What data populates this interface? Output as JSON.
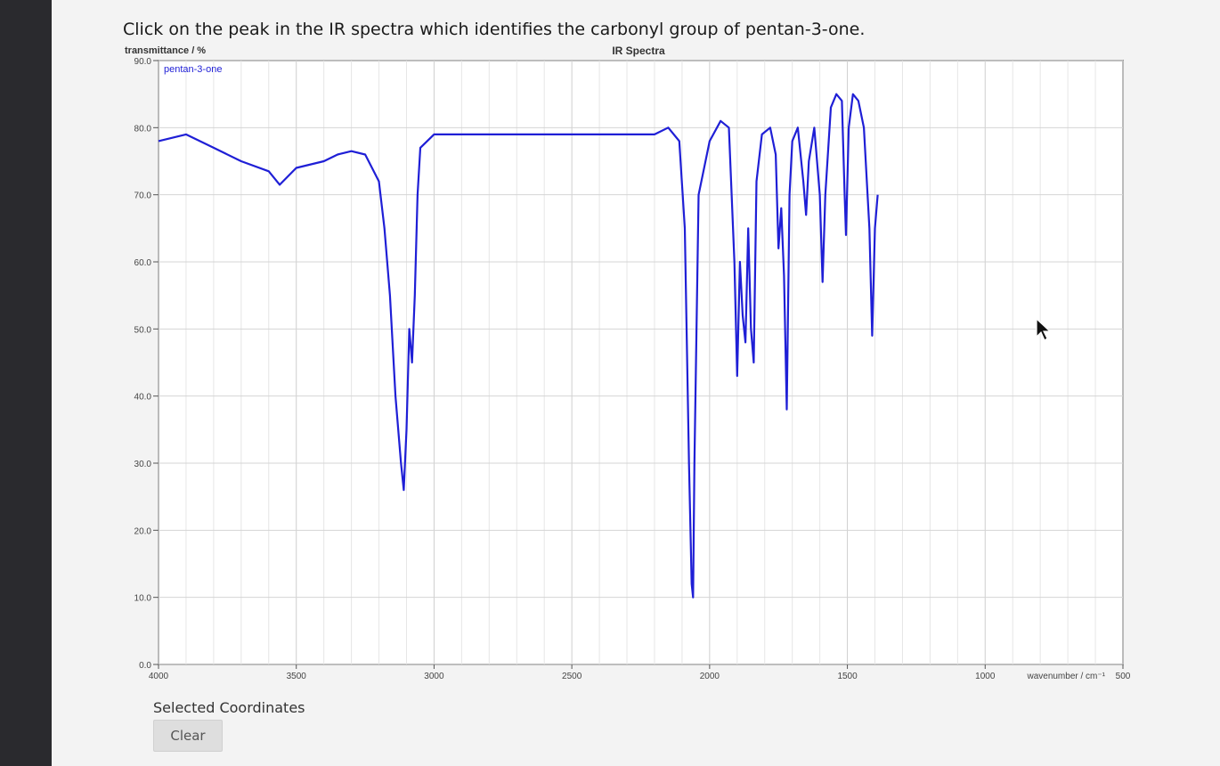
{
  "question": "Click on the peak in the IR spectra which identifies the carbonyl group of pentan-3-one.",
  "coordinates_label": "Selected Coordinates",
  "clear_label": "Clear",
  "chart_data": {
    "type": "line",
    "title": "IR Spectra",
    "ylabel": "transmittance / %",
    "xlabel": "wavenumber / cm⁻¹",
    "xlim": [
      4000,
      500
    ],
    "ylim": [
      0,
      90
    ],
    "x_ticks": [
      4000,
      3500,
      3000,
      2500,
      2000,
      1500,
      1000,
      500
    ],
    "y_ticks": [
      "0.0",
      "10.0",
      "20.0",
      "30.0",
      "40.0",
      "50.0",
      "60.0",
      "70.0",
      "80.0",
      "90.0"
    ],
    "grid": true,
    "legend_position": "top-left",
    "series": [
      {
        "name": "pentan-3-one",
        "color": "#1f1fd6",
        "points": [
          [
            4000,
            78
          ],
          [
            3900,
            79
          ],
          [
            3800,
            77
          ],
          [
            3700,
            75
          ],
          [
            3600,
            73.5
          ],
          [
            3560,
            71.5
          ],
          [
            3500,
            74
          ],
          [
            3400,
            75
          ],
          [
            3350,
            76
          ],
          [
            3300,
            76.5
          ],
          [
            3250,
            76
          ],
          [
            3200,
            72
          ],
          [
            3180,
            65
          ],
          [
            3160,
            55
          ],
          [
            3140,
            40
          ],
          [
            3120,
            30
          ],
          [
            3110,
            26
          ],
          [
            3100,
            35
          ],
          [
            3090,
            50
          ],
          [
            3080,
            45
          ],
          [
            3070,
            55
          ],
          [
            3060,
            70
          ],
          [
            3050,
            77
          ],
          [
            3000,
            79
          ],
          [
            2800,
            79
          ],
          [
            2500,
            79
          ],
          [
            2200,
            79
          ],
          [
            2150,
            80
          ],
          [
            2110,
            78
          ],
          [
            2090,
            65
          ],
          [
            2075,
            30
          ],
          [
            2065,
            12
          ],
          [
            2060,
            10
          ],
          [
            2055,
            30
          ],
          [
            2040,
            70
          ],
          [
            2000,
            78
          ],
          [
            1960,
            81
          ],
          [
            1930,
            80
          ],
          [
            1910,
            60
          ],
          [
            1900,
            43
          ],
          [
            1890,
            60
          ],
          [
            1880,
            52
          ],
          [
            1870,
            48
          ],
          [
            1860,
            65
          ],
          [
            1850,
            50
          ],
          [
            1840,
            45
          ],
          [
            1830,
            72
          ],
          [
            1810,
            79
          ],
          [
            1780,
            80
          ],
          [
            1760,
            76
          ],
          [
            1750,
            62
          ],
          [
            1740,
            68
          ],
          [
            1730,
            58
          ],
          [
            1720,
            38
          ],
          [
            1710,
            70
          ],
          [
            1700,
            78
          ],
          [
            1680,
            80
          ],
          [
            1660,
            72
          ],
          [
            1650,
            67
          ],
          [
            1640,
            75
          ],
          [
            1620,
            80
          ],
          [
            1600,
            70
          ],
          [
            1590,
            57
          ],
          [
            1580,
            70
          ],
          [
            1560,
            83
          ],
          [
            1540,
            85
          ],
          [
            1520,
            84
          ],
          [
            1510,
            70
          ],
          [
            1505,
            64
          ],
          [
            1495,
            80
          ],
          [
            1480,
            85
          ],
          [
            1460,
            84
          ],
          [
            1440,
            80
          ],
          [
            1420,
            65
          ],
          [
            1410,
            49
          ],
          [
            1400,
            65
          ],
          [
            1390,
            70
          ]
        ]
      }
    ]
  }
}
